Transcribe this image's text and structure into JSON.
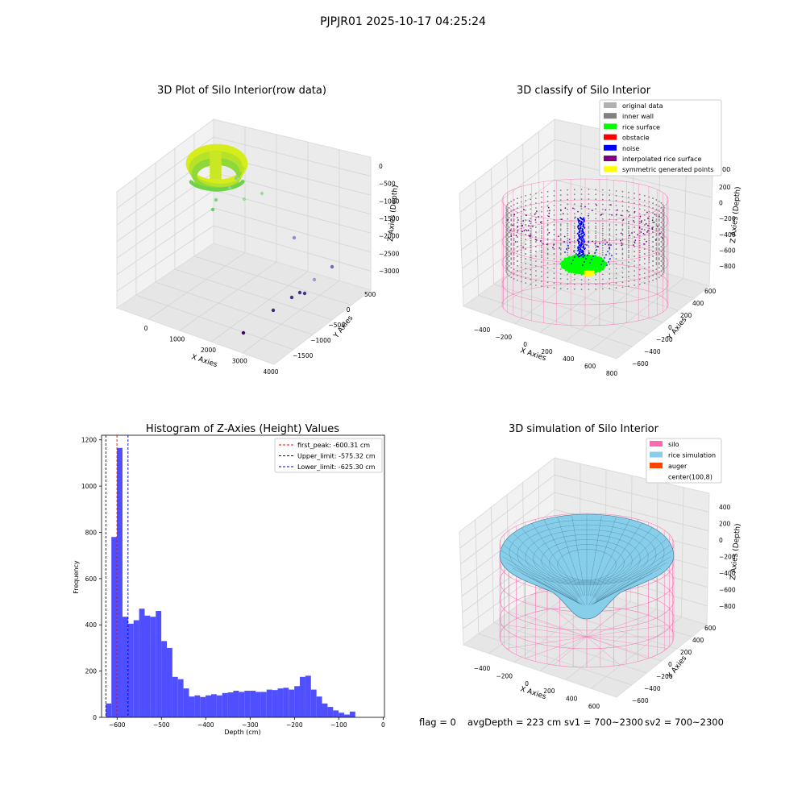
{
  "figure": {
    "suptitle": "PJPJR01 2025-10-17 04:25:24",
    "status": {
      "flag": "flag = 0",
      "avg_depth": "avgDepth = 223 cm",
      "sv1": "sv1 = 700~2300",
      "sv2": "sv2 = 700~2300"
    }
  },
  "colors": {
    "hist_bar": "#4f4fff",
    "first_peak": "#ff0000",
    "limit_line": "#0000cc",
    "silo": "#ff69b4",
    "rice_simulation": "#87ceeb",
    "auger": "#ff4500",
    "rice_surface": "#00ff00",
    "noise": "#0000ff",
    "inner_wall": "#808080",
    "original_data": "#b0b0b0",
    "interpolated": "#800080",
    "symmetric": "#ffff00"
  },
  "chart_data": [
    {
      "type": "scatter",
      "title": "3D Plot of Silo Interior(row data)",
      "xlabel": "X Axies",
      "ylabel": "Y Axies",
      "zlabel": "Z Axies (Depth)",
      "x_ticks": [
        "0",
        "1000",
        "2000",
        "3000",
        "4000"
      ],
      "y_ticks": [
        "500",
        "0",
        "−500",
        "−1000",
        "−1500"
      ],
      "z_ticks": [
        "0",
        "−500",
        "−1000",
        "−1500",
        "−2000",
        "−2500",
        "−3000"
      ],
      "outlier_points": [
        {
          "x": 700,
          "y": 300,
          "z": -1250,
          "color": "#66cc66"
        },
        {
          "x": 1100,
          "y": 200,
          "z": -1000,
          "color": "#7fd37f"
        },
        {
          "x": 1200,
          "y": 0,
          "z": -1050,
          "color": "#88d488"
        },
        {
          "x": 1400,
          "y": -100,
          "z": -1000,
          "color": "#88d488"
        },
        {
          "x": 1600,
          "y": -300,
          "z": -1000,
          "color": "#99dd99"
        },
        {
          "x": 1800,
          "y": -500,
          "z": -900,
          "color": "#99dd99"
        },
        {
          "x": 2200,
          "y": -600,
          "z": -2000,
          "color": "#9988cc"
        },
        {
          "x": 2600,
          "y": -500,
          "z": -2600,
          "color": "#7766bb"
        },
        {
          "x": 3000,
          "y": -900,
          "z": -2200,
          "color": "#9999cc"
        },
        {
          "x": 2600,
          "y": -800,
          "z": -2700,
          "color": "#443388"
        },
        {
          "x": 2800,
          "y": -900,
          "z": -2500,
          "color": "#443388"
        },
        {
          "x": 2900,
          "y": -1000,
          "z": -2450,
          "color": "#443388"
        },
        {
          "x": 2800,
          "y": -1200,
          "z": -2650,
          "color": "#3b2a7a"
        },
        {
          "x": 3000,
          "y": -1500,
          "z": -2700,
          "color": "#440066"
        }
      ]
    },
    {
      "type": "scatter",
      "title": "3D classify of Silo Interior",
      "xlabel": "X Axies",
      "ylabel": "Y Axies",
      "zlabel": "Z Axies (Depth)",
      "x_ticks": [
        "−400",
        "−200",
        "0",
        "200",
        "400",
        "600",
        "800"
      ],
      "y_ticks": [
        "600",
        "400",
        "200",
        "0",
        "−200",
        "−400",
        "−600"
      ],
      "z_ticks": [
        "200",
        "0",
        "−200",
        "−400",
        "−600",
        "−800"
      ],
      "legend_position": "top-right",
      "legend": [
        {
          "label": "original data",
          "color": "#b0b0b0"
        },
        {
          "label": "inner wall",
          "color": "#808080"
        },
        {
          "label": "rice surface",
          "color": "#00ff00"
        },
        {
          "label": "obstacle",
          "color": "#ff0000"
        },
        {
          "label": "noise",
          "color": "#0000ff"
        },
        {
          "label": "interpolated rice surface",
          "color": "#800080"
        },
        {
          "label": "symmetric generated points",
          "color": "#ffff00"
        }
      ],
      "z_tick_clipped": "00"
    },
    {
      "type": "bar",
      "title": "Histogram of Z-Axies (Height) Values",
      "xlabel": "Depth (cm)",
      "ylabel": "Frequency",
      "xlim": [
        -635,
        3
      ],
      "ylim": [
        0,
        1220
      ],
      "x_ticks": [
        -600,
        -500,
        -400,
        -300,
        -200,
        -100,
        0
      ],
      "x_tick_labels": [
        "−600",
        "−500",
        "−400",
        "−300",
        "−200",
        "−100",
        "0"
      ],
      "y_ticks": [
        0,
        200,
        400,
        600,
        800,
        1000,
        1200
      ],
      "bin_start": -625.3,
      "bin_width": 12.5,
      "values": [
        60,
        780,
        1165,
        435,
        405,
        420,
        470,
        440,
        435,
        460,
        330,
        300,
        175,
        165,
        125,
        90,
        95,
        88,
        95,
        100,
        95,
        105,
        108,
        115,
        110,
        115,
        115,
        110,
        110,
        120,
        118,
        125,
        128,
        120,
        135,
        175,
        180,
        120,
        90,
        60,
        45,
        30,
        20,
        12,
        25
      ],
      "vlines": [
        {
          "label": "first_peak: -600.31 cm",
          "x": -600.31,
          "color": "#ff0000"
        },
        {
          "label": "Upper_limit: -575.32 cm",
          "x": -575.32,
          "color": "#0000cc"
        },
        {
          "label": "Lower_limit: -625.30 cm",
          "x": -625.3,
          "color": "#0000cc"
        }
      ],
      "legend_position": "top-right"
    },
    {
      "type": "area",
      "title": "3D simulation of Silo Interior",
      "xlabel": "X Axies",
      "ylabel": "Y Axies",
      "zlabel": "Z Axies (Depth)",
      "x_ticks": [
        "−400",
        "−200",
        "0",
        "200",
        "400",
        "600"
      ],
      "y_ticks": [
        "600",
        "400",
        "200",
        "0",
        "−200",
        "−400",
        "−600"
      ],
      "z_ticks": [
        "400",
        "200",
        "0",
        "−200",
        "−400",
        "−600",
        "−800"
      ],
      "legend_position": "top-right",
      "legend": [
        {
          "label": "silo",
          "color": "#ff69b4"
        },
        {
          "label": "rice simulation",
          "color": "#87ceeb"
        },
        {
          "label": "auger",
          "color": "#ff4500"
        },
        {
          "label": "center(100,8)",
          "color": "#ffffff"
        }
      ]
    }
  ]
}
